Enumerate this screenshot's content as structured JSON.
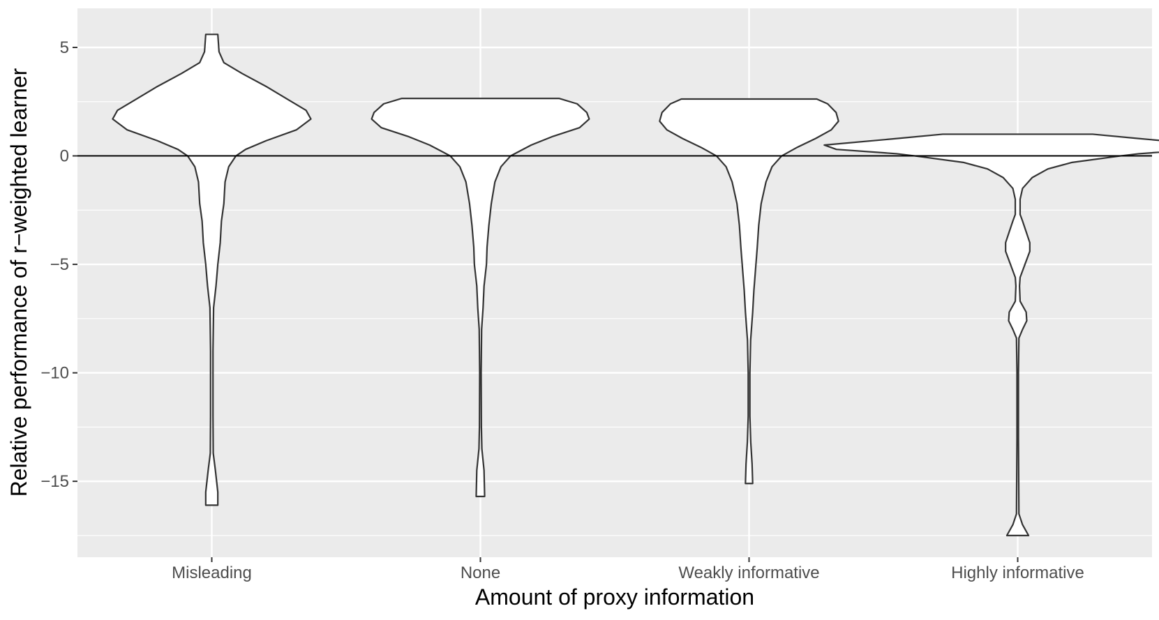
{
  "chart_data": {
    "type": "violin",
    "title": "",
    "xlabel": "Amount of proxy information",
    "ylabel": "Relative performance of r−weighted learner",
    "categories": [
      "Misleading",
      "None",
      "Weakly informative",
      "Highly informative"
    ],
    "ylim": [
      -18.5,
      6.8
    ],
    "yticks": [
      5,
      0,
      -5,
      -10,
      -15
    ],
    "ytick_labels": [
      "5",
      "0",
      "−5",
      "−10",
      "−15"
    ],
    "reference_line_y": 0,
    "grid": true,
    "legend": "none",
    "violins": [
      {
        "category": "Misleading",
        "min": -16.1,
        "max": 5.6,
        "profile": [
          [
            5.6,
            0.05
          ],
          [
            4.8,
            0.06
          ],
          [
            4.3,
            0.1
          ],
          [
            3.8,
            0.25
          ],
          [
            3.2,
            0.45
          ],
          [
            2.6,
            0.63
          ],
          [
            2.1,
            0.78
          ],
          [
            1.7,
            0.82
          ],
          [
            1.2,
            0.7
          ],
          [
            0.7,
            0.45
          ],
          [
            0.3,
            0.28
          ],
          [
            0.0,
            0.2
          ],
          [
            -0.5,
            0.14
          ],
          [
            -1.2,
            0.11
          ],
          [
            -2.2,
            0.1
          ],
          [
            -3.0,
            0.08
          ],
          [
            -4.0,
            0.07
          ],
          [
            -5.0,
            0.05
          ],
          [
            -6.0,
            0.035
          ],
          [
            -7.0,
            0.015
          ],
          [
            -9.0,
            0.01
          ],
          [
            -12.0,
            0.01
          ],
          [
            -13.7,
            0.012
          ],
          [
            -14.5,
            0.03
          ],
          [
            -15.5,
            0.05
          ],
          [
            -16.1,
            0.05
          ]
        ]
      },
      {
        "category": "None",
        "min": -15.7,
        "max": 2.65,
        "profile": [
          [
            2.65,
            0.65
          ],
          [
            2.4,
            0.8
          ],
          [
            2.0,
            0.88
          ],
          [
            1.7,
            0.9
          ],
          [
            1.3,
            0.82
          ],
          [
            0.9,
            0.6
          ],
          [
            0.5,
            0.42
          ],
          [
            0.0,
            0.25
          ],
          [
            -0.5,
            0.17
          ],
          [
            -1.2,
            0.12
          ],
          [
            -2.2,
            0.09
          ],
          [
            -3.2,
            0.07
          ],
          [
            -4.2,
            0.055
          ],
          [
            -5.0,
            0.05
          ],
          [
            -6.0,
            0.03
          ],
          [
            -7.0,
            0.022
          ],
          [
            -8.0,
            0.01
          ],
          [
            -10.0,
            0.006
          ],
          [
            -12.5,
            0.008
          ],
          [
            -13.5,
            0.012
          ],
          [
            -14.5,
            0.03
          ],
          [
            -15.7,
            0.035
          ]
        ]
      },
      {
        "category": "Weakly informative",
        "min": -15.1,
        "max": 2.62,
        "profile": [
          [
            2.62,
            0.56
          ],
          [
            2.4,
            0.65
          ],
          [
            2.0,
            0.72
          ],
          [
            1.6,
            0.74
          ],
          [
            1.2,
            0.68
          ],
          [
            0.8,
            0.55
          ],
          [
            0.4,
            0.4
          ],
          [
            0.0,
            0.27
          ],
          [
            -0.5,
            0.19
          ],
          [
            -1.2,
            0.14
          ],
          [
            -2.2,
            0.1
          ],
          [
            -3.2,
            0.08
          ],
          [
            -4.2,
            0.068
          ],
          [
            -5.2,
            0.054
          ],
          [
            -6.2,
            0.04
          ],
          [
            -7.2,
            0.03
          ],
          [
            -8.5,
            0.013
          ],
          [
            -10.0,
            0.007
          ],
          [
            -12.0,
            0.007
          ],
          [
            -13.2,
            0.014
          ],
          [
            -14.2,
            0.025
          ],
          [
            -15.1,
            0.03
          ]
        ]
      },
      {
        "category": "Highly informative",
        "min": -17.5,
        "max": 1.0,
        "profile": [
          [
            1.0,
            0.62
          ],
          [
            0.8,
            1.0
          ],
          [
            0.5,
            1.6
          ],
          [
            0.3,
            1.5
          ],
          [
            0.1,
            1.0
          ],
          [
            0.0,
            0.85
          ],
          [
            -0.3,
            0.45
          ],
          [
            -0.6,
            0.25
          ],
          [
            -1.0,
            0.12
          ],
          [
            -1.5,
            0.04
          ],
          [
            -2.0,
            0.02
          ],
          [
            -2.7,
            0.02
          ],
          [
            -3.0,
            0.04
          ],
          [
            -3.5,
            0.07
          ],
          [
            -4.0,
            0.1
          ],
          [
            -4.4,
            0.1
          ],
          [
            -5.0,
            0.06
          ],
          [
            -5.6,
            0.02
          ],
          [
            -6.0,
            0.015
          ],
          [
            -6.7,
            0.02
          ],
          [
            -7.2,
            0.07
          ],
          [
            -7.6,
            0.075
          ],
          [
            -8.0,
            0.04
          ],
          [
            -8.4,
            0.01
          ],
          [
            -10.0,
            0.006
          ],
          [
            -13.0,
            0.006
          ],
          [
            -16.5,
            0.01
          ],
          [
            -17.0,
            0.04
          ],
          [
            -17.5,
            0.09
          ]
        ]
      }
    ]
  }
}
